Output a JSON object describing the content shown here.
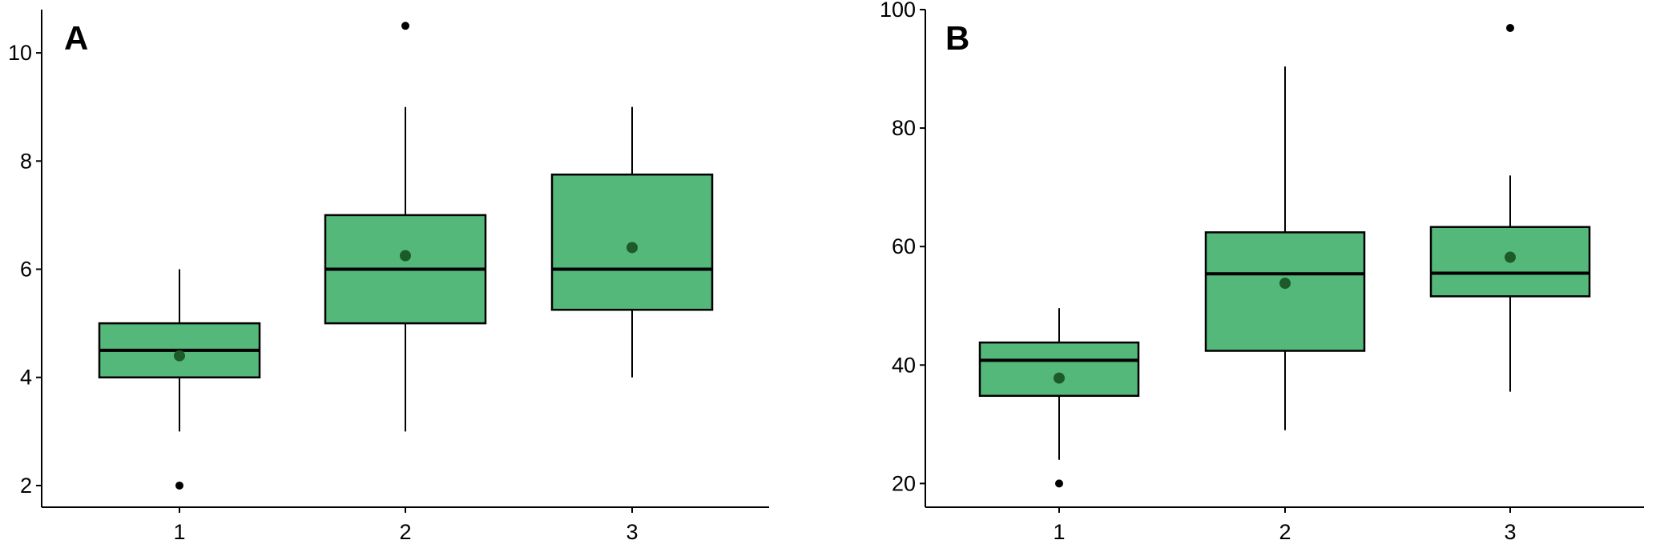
{
  "chart_data": [
    {
      "type": "box",
      "panel_label": "A",
      "title": "",
      "xlabel": "",
      "ylabel": "",
      "categories": [
        "1",
        "2",
        "3"
      ],
      "ylim": [
        1.6,
        10.8
      ],
      "yticks": [
        2,
        4,
        6,
        8,
        10
      ],
      "box_color": "#55b87b",
      "mean_color": "#1c5a2a",
      "boxes": [
        {
          "category": "1",
          "q1": 4.0,
          "median": 4.5,
          "q3": 5.0,
          "whisker_low": 3.0,
          "whisker_high": 6.0,
          "mean": 4.4,
          "outliers": [
            2.0
          ]
        },
        {
          "category": "2",
          "q1": 5.0,
          "median": 6.0,
          "q3": 7.0,
          "whisker_low": 3.0,
          "whisker_high": 9.0,
          "mean": 6.25,
          "outliers": [
            10.5
          ]
        },
        {
          "category": "3",
          "q1": 5.25,
          "median": 6.0,
          "q3": 7.75,
          "whisker_low": 4.0,
          "whisker_high": 9.0,
          "mean": 6.4,
          "outliers": []
        }
      ]
    },
    {
      "type": "box",
      "panel_label": "B",
      "title": "",
      "xlabel": "",
      "ylabel": "",
      "categories": [
        "1",
        "2",
        "3"
      ],
      "ylim": [
        16,
        100
      ],
      "yticks": [
        20,
        40,
        60,
        80,
        100
      ],
      "box_color": "#55b87b",
      "mean_color": "#1c5a2a",
      "boxes": [
        {
          "category": "1",
          "q1": 34.8,
          "median": 40.8,
          "q3": 43.8,
          "whisker_low": 24.0,
          "whisker_high": 49.6,
          "mean": 37.8,
          "outliers": [
            20.0
          ]
        },
        {
          "category": "2",
          "q1": 42.4,
          "median": 55.4,
          "q3": 62.4,
          "whisker_low": 29.0,
          "whisker_high": 90.4,
          "mean": 53.8,
          "outliers": []
        },
        {
          "category": "3",
          "q1": 51.6,
          "median": 55.5,
          "q3": 63.3,
          "whisker_low": 35.5,
          "whisker_high": 72.0,
          "mean": 58.2,
          "outliers": [
            96.9
          ]
        }
      ]
    }
  ]
}
